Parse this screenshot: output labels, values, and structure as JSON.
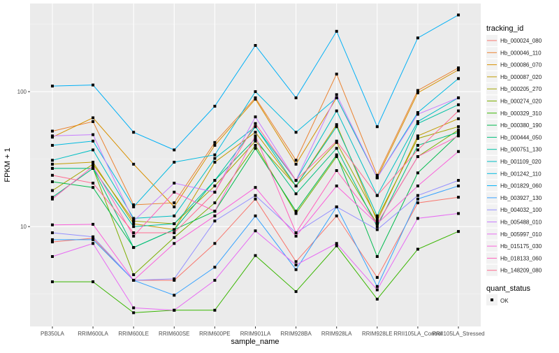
{
  "chart_data": {
    "type": "line",
    "title": "",
    "xlabel": "sample_name",
    "ylabel": "FPKM + 1",
    "yscale": "log10",
    "ylim": [
      1.82,
      450
    ],
    "yticks": [
      10,
      100
    ],
    "ytick_labels": [
      "10",
      "100"
    ],
    "grid": true,
    "legend_position": "right",
    "categories": [
      "PB350LA",
      "RRIM600LA",
      "RRIM600LE",
      "RRIM600SE",
      "RRIM600PE",
      "RRIM901LA",
      "RRIM928BA",
      "RRIM928LA",
      "RRIM928LE",
      "RRII105LA_Control",
      "RRII105LA_Stressed"
    ],
    "legend": {
      "color_title": "tracking_id",
      "shape_title": "quant_status",
      "shape_entries": [
        "OK"
      ]
    },
    "series": [
      {
        "name": "Hb_000024_080",
        "color": "#F8766D",
        "values": [
          7.7,
          8.2,
          4,
          4,
          7.5,
          16,
          5.5,
          12,
          4.2,
          15,
          16.5
        ]
      },
      {
        "name": "Hb_000046_110",
        "color": "#EA8331",
        "values": [
          51,
          60,
          14.5,
          15,
          42,
          90,
          31,
          135,
          24,
          102,
          150
        ]
      },
      {
        "name": "Hb_000086_070",
        "color": "#D89000",
        "values": [
          46,
          64,
          29,
          14,
          40,
          88,
          29,
          90,
          23,
          98,
          145
        ]
      },
      {
        "name": "Hb_000087_020",
        "color": "#C09B00",
        "values": [
          29,
          30,
          10.5,
          9.5,
          30,
          50,
          20,
          57,
          11,
          47,
          63
        ]
      },
      {
        "name": "Hb_000205_270",
        "color": "#A3A500",
        "values": [
          18.5,
          29,
          11,
          10.5,
          20,
          43,
          20,
          42,
          11.5,
          45,
          55
        ]
      },
      {
        "name": "Hb_000274_020",
        "color": "#7CAE00",
        "values": [
          27,
          27,
          4.4,
          8.3,
          15,
          40,
          12.5,
          33,
          10.5,
          33,
          52
        ]
      },
      {
        "name": "Hb_000329_310",
        "color": "#39B600",
        "values": [
          3.9,
          3.9,
          2.3,
          2.4,
          2.4,
          6.1,
          3.3,
          7.2,
          2.9,
          6.8,
          9.2
        ]
      },
      {
        "name": "Hb_000380_190",
        "color": "#00BB4E",
        "values": [
          21.5,
          19.5,
          7,
          9.5,
          13,
          38,
          13,
          34,
          6,
          25,
          48
        ]
      },
      {
        "name": "Hb_000444_050",
        "color": "#00BF7D",
        "values": [
          16.5,
          27,
          7,
          9.5,
          22,
          45,
          17.5,
          38,
          10,
          40,
          50
        ]
      },
      {
        "name": "Hb_000751_130",
        "color": "#00C1A3",
        "values": [
          27,
          27,
          10,
          10.5,
          22,
          55,
          20,
          55,
          12,
          58,
          80
        ]
      },
      {
        "name": "Hb_001109_020",
        "color": "#00BFC4",
        "values": [
          31,
          37,
          11.5,
          12,
          32,
          55,
          22,
          72,
          17,
          60,
          90
        ]
      },
      {
        "name": "Hb_001242_110",
        "color": "#00BAE0",
        "values": [
          40,
          43,
          14,
          30,
          34,
          100,
          50,
          90,
          23,
          70,
          125
        ]
      },
      {
        "name": "Hb_001829_060",
        "color": "#00B0F6",
        "values": [
          110,
          112,
          50,
          37,
          78,
          220,
          90,
          280,
          55,
          250,
          370
        ]
      },
      {
        "name": "Hb_003927_130",
        "color": "#35A2FF",
        "values": [
          8,
          8,
          4,
          3.1,
          5,
          12,
          4.8,
          14,
          3.6,
          16,
          20
        ]
      },
      {
        "name": "Hb_004032_100",
        "color": "#9590FF",
        "values": [
          9,
          8.4,
          4,
          4.1,
          11,
          17,
          9,
          14,
          9.5,
          17,
          22
        ]
      },
      {
        "name": "Hb_005488_010",
        "color": "#C77CFF",
        "values": [
          47,
          48,
          11,
          21,
          18,
          65,
          22,
          95,
          23,
          68,
          90
        ]
      },
      {
        "name": "Hb_005997_010",
        "color": "#E76BF3",
        "values": [
          6,
          7.5,
          2.5,
          2.4,
          4,
          9.3,
          5.2,
          7.5,
          3.4,
          11.5,
          12.5
        ]
      },
      {
        "name": "Hb_015175_030",
        "color": "#FA62DB",
        "values": [
          10.3,
          10.4,
          4,
          7.5,
          12,
          19.5,
          8.5,
          20,
          10.5,
          20,
          36
        ]
      },
      {
        "name": "Hb_018133_060",
        "color": "#FF62BC",
        "values": [
          16,
          28,
          8.5,
          18,
          13,
          47,
          9,
          26,
          10.5,
          33,
          47
        ]
      },
      {
        "name": "Hb_148209_080",
        "color": "#FF6C91",
        "values": [
          24,
          21,
          9,
          9,
          18,
          58,
          22,
          43,
          17,
          37,
          72
        ]
      }
    ]
  }
}
